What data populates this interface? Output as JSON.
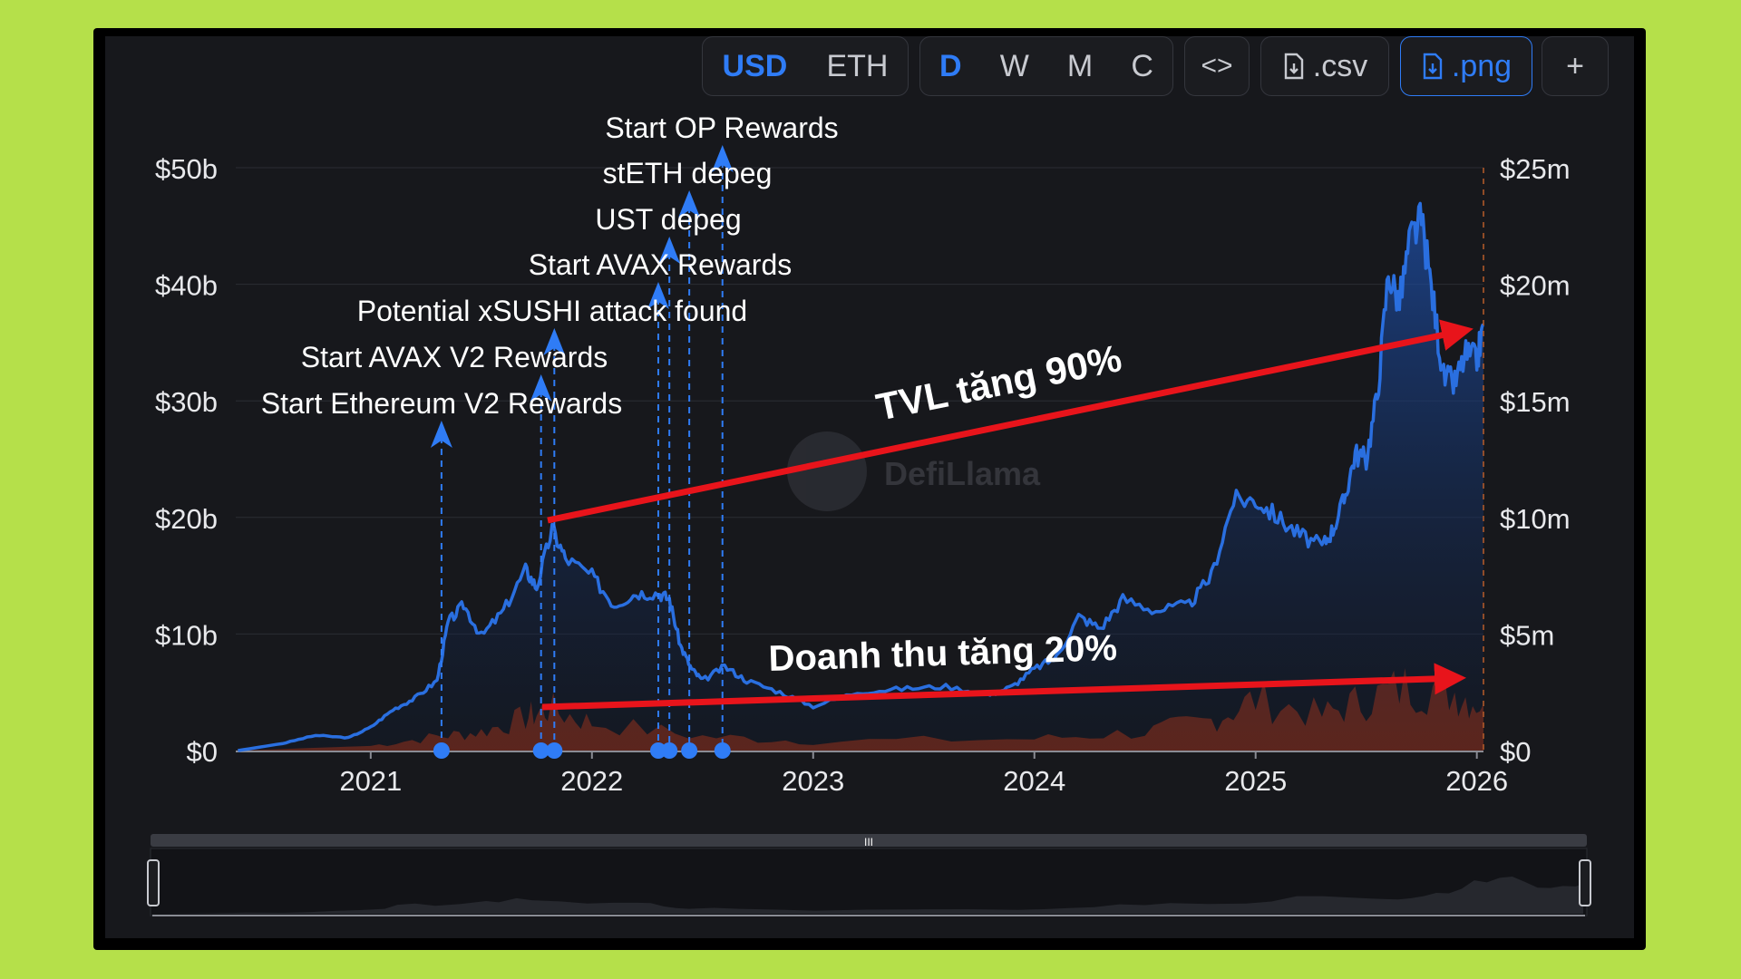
{
  "toolbar": {
    "currency_options": [
      "USD",
      "ETH"
    ],
    "currency_selected": "USD",
    "period_options": [
      "D",
      "W",
      "M",
      "C"
    ],
    "period_selected": "D",
    "embed_label": "<>",
    "csv_label": ".csv",
    "png_label": ".png",
    "add_label": "+",
    "accent_color": "#2f7cf6"
  },
  "watermark": "DefiLlama",
  "annotations": {
    "tvl_arrow_label": "TVL tăng 90%",
    "revenue_arrow_label": "Doanh thu tăng 20%",
    "arrow_color": "#e8141b"
  },
  "chart_data": {
    "type": "area",
    "x_axis": {
      "ticks": [
        "2021",
        "2022",
        "2023",
        "2024",
        "2025",
        "2026"
      ]
    },
    "y_left": {
      "ticks": [
        "$0",
        "$10b",
        "$20b",
        "$30b",
        "$40b",
        "$50b"
      ],
      "range": [
        0,
        50
      ],
      "unit": "$b"
    },
    "y_right": {
      "ticks": [
        "$0",
        "$5m",
        "$10m",
        "$15m",
        "$20m",
        "$25m"
      ],
      "range": [
        0,
        25
      ],
      "unit": "$m"
    },
    "grid": true,
    "series": [
      {
        "color": "#2a6fe0",
        "axis": "left",
        "points": [
          [
            2020.4,
            0
          ],
          [
            2020.6,
            0.6
          ],
          [
            2020.75,
            1.3
          ],
          [
            2020.9,
            1.1
          ],
          [
            2021.0,
            2.0
          ],
          [
            2021.1,
            3.5
          ],
          [
            2021.2,
            4.5
          ],
          [
            2021.3,
            6.0
          ],
          [
            2021.35,
            11.0
          ],
          [
            2021.42,
            12.5
          ],
          [
            2021.5,
            9.8
          ],
          [
            2021.6,
            12.0
          ],
          [
            2021.7,
            15.5
          ],
          [
            2021.75,
            14.0
          ],
          [
            2021.82,
            19.0
          ],
          [
            2021.88,
            16.5
          ],
          [
            2022.0,
            15.0
          ],
          [
            2022.1,
            12.5
          ],
          [
            2022.2,
            13.5
          ],
          [
            2022.3,
            13.5
          ],
          [
            2022.35,
            13.0
          ],
          [
            2022.4,
            9.0
          ],
          [
            2022.45,
            7.0
          ],
          [
            2022.5,
            6.0
          ],
          [
            2022.6,
            7.2
          ],
          [
            2022.7,
            6.0
          ],
          [
            2022.85,
            5.0
          ],
          [
            2023.0,
            3.8
          ],
          [
            2023.2,
            5.0
          ],
          [
            2023.4,
            5.3
          ],
          [
            2023.6,
            5.5
          ],
          [
            2023.8,
            4.8
          ],
          [
            2023.9,
            5.5
          ],
          [
            2024.0,
            7.0
          ],
          [
            2024.1,
            8.0
          ],
          [
            2024.2,
            11.5
          ],
          [
            2024.3,
            10.5
          ],
          [
            2024.4,
            13.0
          ],
          [
            2024.55,
            12.0
          ],
          [
            2024.7,
            12.5
          ],
          [
            2024.8,
            15.0
          ],
          [
            2024.9,
            21.5
          ],
          [
            2025.0,
            21.5
          ],
          [
            2025.1,
            20.0
          ],
          [
            2025.2,
            18.5
          ],
          [
            2025.3,
            17.5
          ],
          [
            2025.35,
            19.0
          ],
          [
            2025.4,
            21.5
          ],
          [
            2025.45,
            25.5
          ],
          [
            2025.5,
            25.0
          ],
          [
            2025.55,
            30.5
          ],
          [
            2025.6,
            41.0
          ],
          [
            2025.65,
            38.5
          ],
          [
            2025.7,
            44.0
          ],
          [
            2025.75,
            45.5
          ],
          [
            2025.8,
            39.0
          ],
          [
            2025.85,
            32.0
          ],
          [
            2025.9,
            31.5
          ],
          [
            2025.95,
            34.0
          ],
          [
            2026.0,
            33.5
          ],
          [
            2026.03,
            36.5
          ]
        ]
      },
      {
        "color": "#7a2a16",
        "axis": "right",
        "points": [
          [
            2020.4,
            0
          ],
          [
            2021.0,
            0.2
          ],
          [
            2021.3,
            0.6
          ],
          [
            2021.5,
            0.8
          ],
          [
            2021.7,
            1.4
          ],
          [
            2021.8,
            1.8
          ],
          [
            2022.0,
            1.2
          ],
          [
            2022.5,
            0.6
          ],
          [
            2023.0,
            0.4
          ],
          [
            2024.0,
            0.5
          ],
          [
            2024.5,
            0.8
          ],
          [
            2024.8,
            1.3
          ],
          [
            2025.0,
            2.2
          ],
          [
            2025.3,
            1.5
          ],
          [
            2025.5,
            2.2
          ],
          [
            2025.7,
            2.8
          ],
          [
            2025.9,
            2.5
          ],
          [
            2026.03,
            2.0
          ]
        ]
      }
    ],
    "events": [
      {
        "label": "Start Ethereum V2 Rewards",
        "x": 2021.32
      },
      {
        "label": "Start AVAX V2 Rewards",
        "x": 2021.77
      },
      {
        "label": "Potential xSUSHI attack found",
        "x": 2021.83
      },
      {
        "label": "Start AVAX Rewards",
        "x": 2022.3
      },
      {
        "label": "UST depeg",
        "x": 2022.35
      },
      {
        "label": "stETH depeg",
        "x": 2022.44
      },
      {
        "label": "Start OP Rewards",
        "x": 2022.59
      }
    ]
  }
}
